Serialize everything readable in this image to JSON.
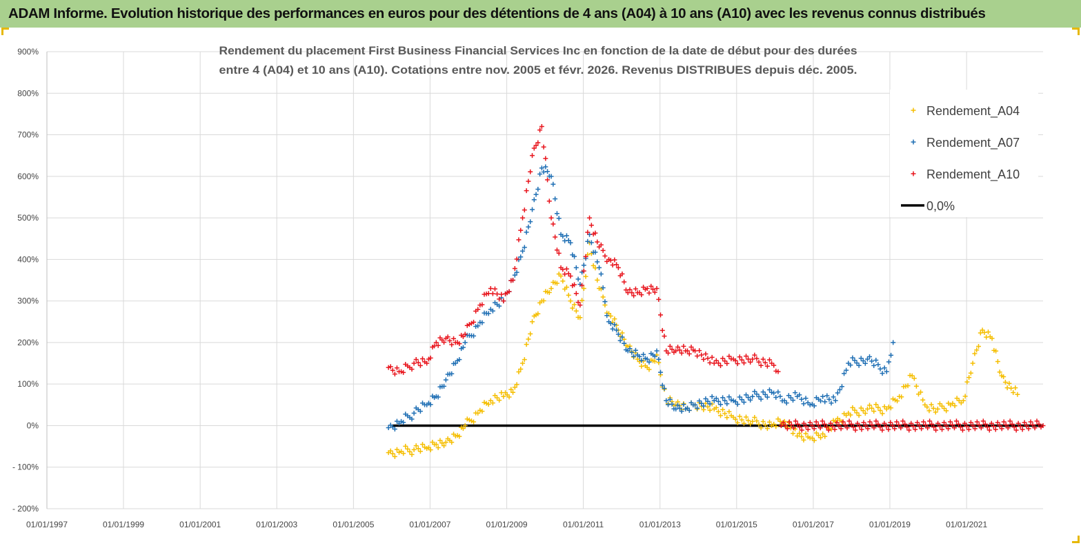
{
  "banner": {
    "title": "ADAM Informe. Evolution historique des performances en euros pour des détentions de 4 ans (A04) à 10 ans (A10) avec les revenus connus distribués"
  },
  "colors": {
    "banner_bg": "#a9d08e",
    "A04": "#f5be00",
    "A07": "#1f6fb4",
    "A10": "#e8141c",
    "zero_line": "#000000",
    "grid": "#d9d9d9"
  },
  "chart_data": {
    "type": "scatter",
    "title_lines": [
      "Rendement du placement First Business Financial Services  Inc en fonction de la date de début pour des durées",
      "entre 4 (A04) et 10 ans (A10). Cotations entre nov. 2005 et févr. 2026. Revenus DISTRIBUES depuis déc. 2005."
    ],
    "xlabel": "",
    "ylabel": "",
    "x_range": [
      "1997-01-01",
      "2022-12-31"
    ],
    "x_tick_labels": [
      "01/01/1997",
      "01/01/1999",
      "01/01/2001",
      "01/01/2003",
      "01/01/2005",
      "01/01/2007",
      "01/01/2009",
      "01/01/2011",
      "01/01/2013",
      "01/01/2015",
      "01/01/2017",
      "01/01/2019",
      "01/01/2021"
    ],
    "y_range": [
      -200,
      900
    ],
    "y_tick_labels": [
      "900%",
      "800%",
      "700%",
      "600%",
      "500%",
      "400%",
      "300%",
      "200%",
      "100%",
      "0%",
      "- 100%",
      "- 200%"
    ],
    "grid": true,
    "legend_position": "top-right",
    "series": [
      {
        "name": "Rendement_A04",
        "marker": "+",
        "x": [
          "2005-12-01",
          "2006-04-01",
          "2006-08-01",
          "2006-12-01",
          "2007-03-01",
          "2007-06-01",
          "2007-09-01",
          "2007-12-01",
          "2008-04-01",
          "2008-08-01",
          "2008-12-01",
          "2009-03-01",
          "2009-06-01",
          "2009-09-01",
          "2009-12-01",
          "2010-03-01",
          "2010-06-01",
          "2010-09-01",
          "2010-12-01",
          "2011-03-01",
          "2011-06-01",
          "2011-09-01",
          "2011-12-01",
          "2012-03-01",
          "2012-06-01",
          "2012-09-01",
          "2012-12-01",
          "2013-03-01",
          "2013-06-01",
          "2013-09-01",
          "2013-12-01",
          "2014-06-01",
          "2014-12-01",
          "2015-06-01",
          "2015-12-01",
          "2016-04-01",
          "2016-08-01",
          "2016-12-01",
          "2017-04-01",
          "2017-08-01",
          "2017-12-01",
          "2018-06-01",
          "2018-12-01",
          "2019-04-01",
          "2019-08-01",
          "2019-12-01",
          "2020-04-01",
          "2020-08-01",
          "2020-12-01",
          "2021-03-01",
          "2021-06-01",
          "2021-09-01",
          "2021-12-01",
          "2022-03-01",
          "2022-05-01"
        ],
        "y": [
          -65,
          -62,
          -58,
          -55,
          -45,
          -40,
          -25,
          0,
          30,
          60,
          70,
          80,
          150,
          250,
          300,
          330,
          360,
          300,
          260,
          440,
          330,
          270,
          230,
          190,
          160,
          140,
          170,
          60,
          50,
          40,
          50,
          40,
          20,
          10,
          0,
          10,
          -25,
          -30,
          -20,
          10,
          30,
          40,
          40,
          70,
          120,
          50,
          40,
          50,
          60,
          150,
          230,
          210,
          120,
          90,
          75
        ]
      },
      {
        "name": "Rendement_A07",
        "marker": "+",
        "x": [
          "2005-12-01",
          "2006-04-01",
          "2006-08-01",
          "2006-12-01",
          "2007-03-01",
          "2007-06-01",
          "2007-09-01",
          "2007-12-01",
          "2008-04-01",
          "2008-08-01",
          "2008-12-01",
          "2009-03-01",
          "2009-06-01",
          "2009-09-01",
          "2009-12-01",
          "2010-03-01",
          "2010-06-01",
          "2010-09-01",
          "2010-12-01",
          "2011-03-01",
          "2011-06-01",
          "2011-09-01",
          "2011-12-01",
          "2012-03-01",
          "2012-06-01",
          "2012-09-01",
          "2012-12-01",
          "2013-03-01",
          "2013-06-01",
          "2013-09-01",
          "2013-12-01",
          "2014-06-01",
          "2014-12-01",
          "2015-06-01",
          "2015-12-01",
          "2016-04-01",
          "2016-08-01",
          "2016-12-01",
          "2017-04-01",
          "2017-08-01",
          "2017-12-01",
          "2018-06-01",
          "2018-12-01",
          "2019-02-01"
        ],
        "y": [
          -5,
          10,
          30,
          50,
          70,
          110,
          150,
          200,
          240,
          280,
          300,
          350,
          420,
          520,
          620,
          600,
          460,
          440,
          340,
          460,
          380,
          250,
          220,
          180,
          170,
          160,
          180,
          60,
          40,
          40,
          50,
          60,
          60,
          70,
          80,
          60,
          70,
          50,
          70,
          60,
          150,
          160,
          130,
          200
        ]
      },
      {
        "name": "Rendement_A10",
        "marker": "+",
        "x": [
          "2005-12-01",
          "2006-04-01",
          "2006-08-01",
          "2006-12-01",
          "2007-03-01",
          "2007-06-01",
          "2007-09-01",
          "2007-12-01",
          "2008-04-01",
          "2008-08-01",
          "2008-12-01",
          "2009-03-01",
          "2009-06-01",
          "2009-09-01",
          "2009-12-01",
          "2010-03-01",
          "2010-06-01",
          "2010-09-01",
          "2010-12-01",
          "2011-03-01",
          "2011-06-01",
          "2011-09-01",
          "2011-12-01",
          "2012-03-01",
          "2012-06-01",
          "2012-09-01",
          "2012-12-01",
          "2013-03-01",
          "2013-06-01",
          "2013-09-01",
          "2013-12-01",
          "2014-06-01",
          "2014-12-01",
          "2015-06-01",
          "2015-12-01",
          "2016-02-01",
          "2016-03-01",
          "2022-12-31"
        ],
        "y": [
          140,
          130,
          150,
          150,
          200,
          210,
          200,
          220,
          280,
          330,
          300,
          350,
          500,
          650,
          720,
          500,
          380,
          360,
          290,
          500,
          430,
          400,
          380,
          320,
          320,
          330,
          330,
          180,
          180,
          180,
          180,
          150,
          160,
          160,
          150,
          130,
          0,
          0
        ]
      }
    ],
    "reference_line": {
      "name": "0,0%",
      "y": 0
    },
    "legend_entries": [
      "Rendement_A04",
      "Rendement_A07",
      "Rendement_A10",
      "0,0%"
    ]
  }
}
